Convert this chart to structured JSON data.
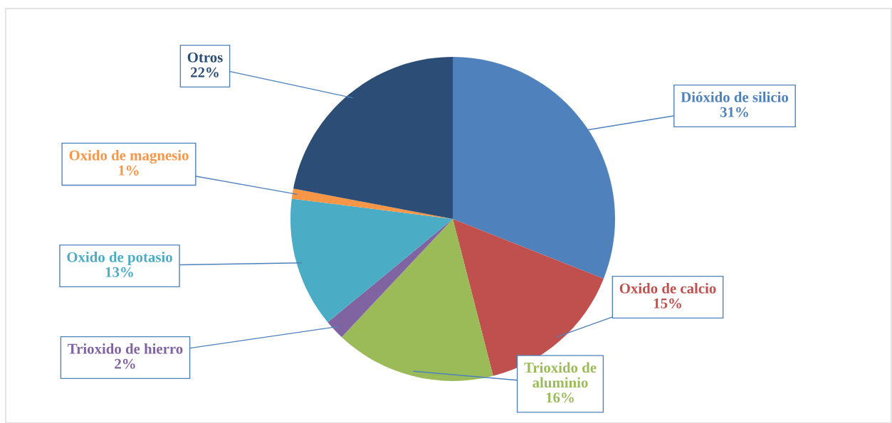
{
  "chart_data": {
    "type": "pie",
    "categories": [
      "Dióxido de silicio",
      "Oxido de calcio",
      "Trioxido de aluminio",
      "Trioxido de hierro",
      "Oxido de potasio",
      "Oxido de magnesio",
      "Otros"
    ],
    "values": [
      31,
      15,
      16,
      2,
      13,
      1,
      22
    ],
    "value_labels": [
      "31%",
      "15%",
      "16%",
      "2%",
      "13%",
      "1%",
      "22%"
    ],
    "colors": [
      "#4f81bd",
      "#c0504d",
      "#9bbb59",
      "#8064a2",
      "#4bacc6",
      "#f79646",
      "#2c4d75"
    ],
    "legend": false
  }
}
